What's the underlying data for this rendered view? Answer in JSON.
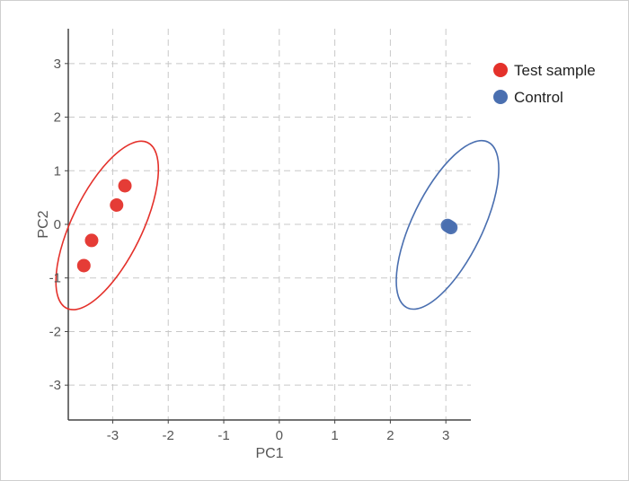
{
  "chart_data": {
    "type": "scatter",
    "xlabel": "PC1",
    "ylabel": "PC2",
    "xlim": [
      -3.8,
      3.45
    ],
    "ylim": [
      -3.65,
      3.65
    ],
    "xticks": [
      -3,
      -2,
      -1,
      0,
      1,
      2,
      3
    ],
    "yticks": [
      -3,
      -2,
      -1,
      0,
      1,
      2,
      3
    ],
    "grid": true,
    "legend_position": "top-right",
    "series": [
      {
        "name": "Test sample",
        "color": "#e4312b",
        "points": [
          {
            "x": -2.78,
            "y": 0.72
          },
          {
            "x": -2.93,
            "y": 0.36
          },
          {
            "x": -3.38,
            "y": -0.3
          },
          {
            "x": -3.52,
            "y": -0.77
          }
        ],
        "ellipse": {
          "cx": -3.1,
          "cy": -0.02,
          "rx": 0.63,
          "ry": 1.72,
          "rotation_deg": 26
        }
      },
      {
        "name": "Control",
        "color": "#4a6fb0",
        "points": [
          {
            "x": 3.03,
            "y": -0.02
          },
          {
            "x": 3.09,
            "y": -0.06
          },
          {
            "x": 3.06,
            "y": -0.04
          }
        ],
        "ellipse": {
          "cx": 3.03,
          "cy": -0.01,
          "rx": 0.63,
          "ry": 1.72,
          "rotation_deg": 26
        }
      }
    ]
  }
}
